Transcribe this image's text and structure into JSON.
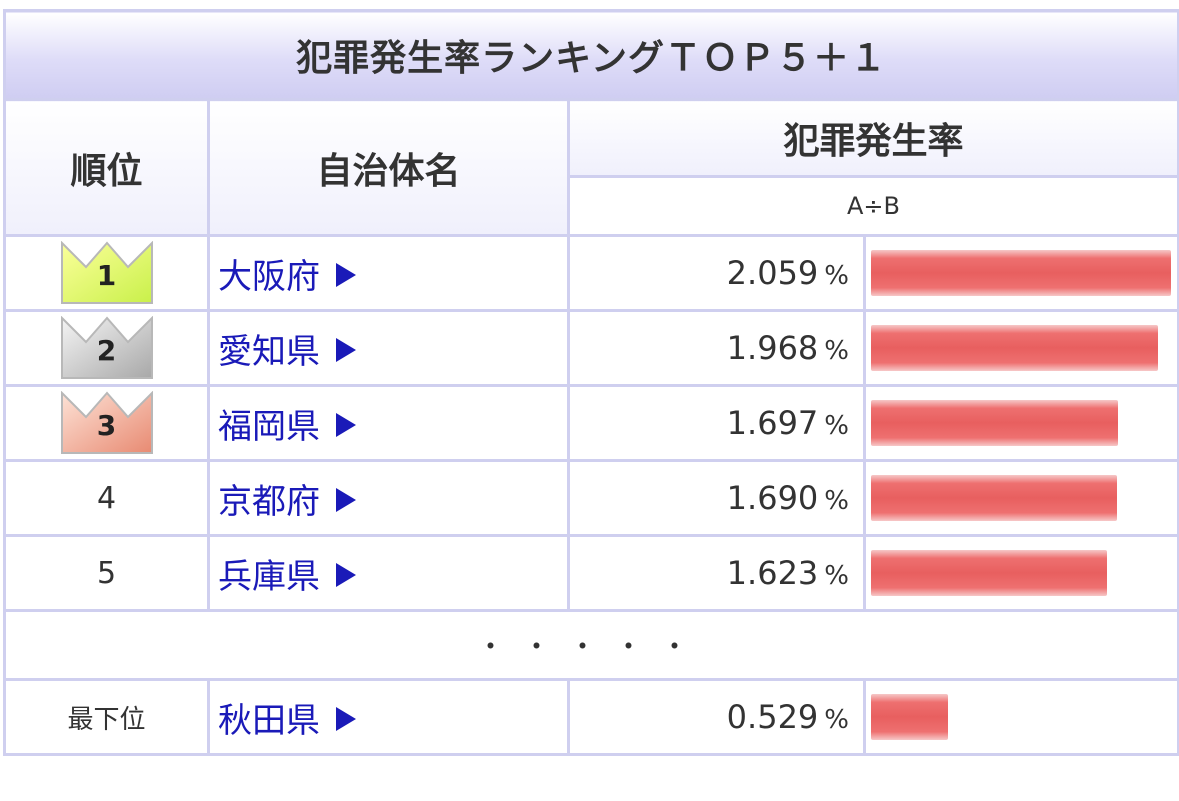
{
  "title": "犯罪発生率ランキングＴＯＰ５＋１",
  "headers": {
    "rank": "順位",
    "name": "自治体名",
    "rate": "犯罪発生率",
    "formula": "A÷B"
  },
  "unit": "%",
  "separator": "・・・・・",
  "colors": {
    "gold": "#f0f75a",
    "silver": "#c4c4c4",
    "bronze": "#ec9c84",
    "bar": "#e85f5f",
    "link": "#1a1ab8",
    "border": "#cfcfef"
  },
  "rows": [
    {
      "rank": "1",
      "crown": "gold",
      "name": "大阪府",
      "value": "2.059"
    },
    {
      "rank": "2",
      "crown": "silver",
      "name": "愛知県",
      "value": "1.968"
    },
    {
      "rank": "3",
      "crown": "bronze",
      "name": "福岡県",
      "value": "1.697"
    },
    {
      "rank": "4",
      "crown": "",
      "name": "京都府",
      "value": "1.690"
    },
    {
      "rank": "5",
      "crown": "",
      "name": "兵庫県",
      "value": "1.623"
    }
  ],
  "last": {
    "rank": "最下位",
    "name": "秋田県",
    "value": "0.529"
  },
  "chart_data": {
    "type": "table",
    "title": "犯罪発生率ランキングＴＯＰ５＋１",
    "categories": [
      "大阪府",
      "愛知県",
      "福岡県",
      "京都府",
      "兵庫県",
      "秋田県"
    ],
    "values": [
      2.059,
      1.968,
      1.697,
      1.69,
      1.623,
      0.529
    ],
    "ylabel": "犯罪発生率",
    "xlim": [
      0,
      2.059
    ]
  }
}
